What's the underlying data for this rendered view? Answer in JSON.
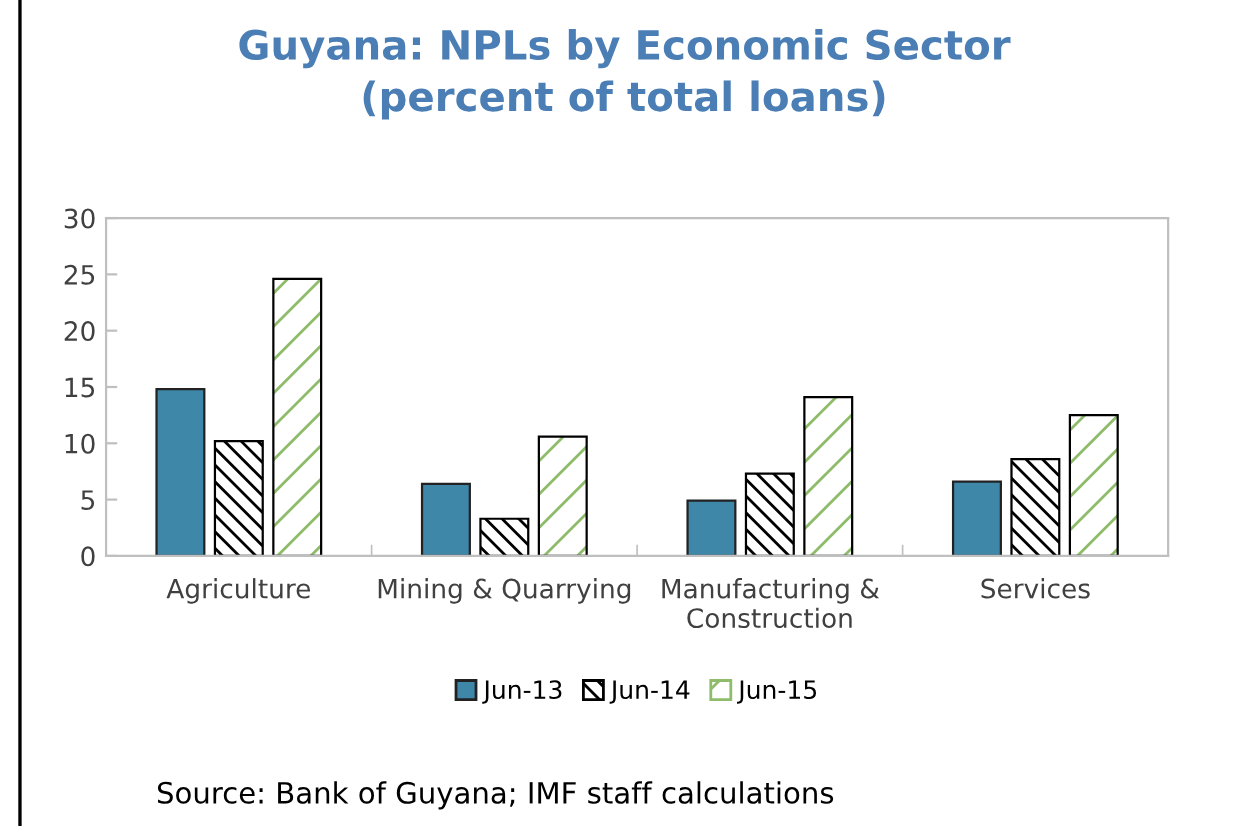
{
  "chart_data": {
    "type": "bar",
    "title": "Guyana: NPLs by Economic Sector\n(percent of total loans)",
    "categories": [
      "Agriculture",
      "Mining & Quarrying",
      "Manufacturing &\nConstruction",
      "Services"
    ],
    "series": [
      {
        "name": "Jun-13",
        "color": "#3f87a8",
        "values": [
          14.8,
          6.4,
          4.9,
          6.6
        ]
      },
      {
        "name": "Jun-14",
        "color": "#000000",
        "values": [
          10.2,
          3.3,
          7.3,
          8.6
        ]
      },
      {
        "name": "Jun-15",
        "color": "#8fbc6a",
        "values": [
          24.6,
          10.6,
          14.1,
          12.5
        ]
      }
    ],
    "ylim": [
      0,
      30
    ],
    "yticks": [
      0,
      5,
      10,
      15,
      20,
      25,
      30
    ],
    "grid": false,
    "legend": "bottom",
    "annotations": [
      "Source: Bank of Guyana; IMF staff calculations"
    ]
  }
}
